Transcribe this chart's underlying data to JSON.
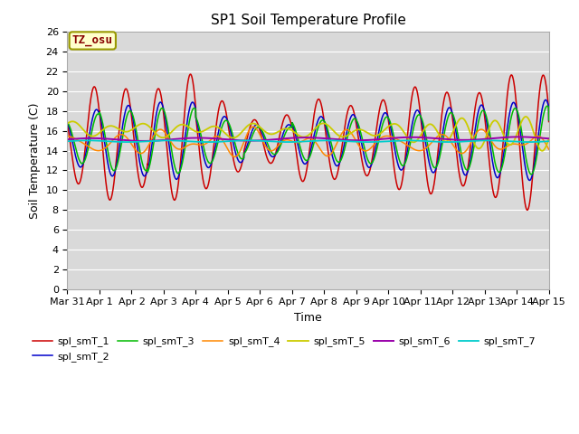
{
  "title": "SP1 Soil Temperature Profile",
  "xlabel": "Time",
  "ylabel": "Soil Temperature (C)",
  "ylim": [
    0,
    26
  ],
  "annotation": "TZ_osu",
  "legend": [
    "spl_smT_1",
    "spl_smT_2",
    "spl_smT_3",
    "spl_smT_4",
    "spl_smT_5",
    "spl_smT_6",
    "spl_smT_7"
  ],
  "colors": [
    "#cc0000",
    "#0000cc",
    "#00bb00",
    "#ff8800",
    "#cccc00",
    "#9900aa",
    "#00cccc"
  ],
  "background_color": "#d9d9d9",
  "figure_color": "#ffffff",
  "xtick_labels": [
    "Mar 31",
    "Apr 1",
    "Apr 2",
    "Apr 3",
    "Apr 4",
    "Apr 5",
    "Apr 6",
    "Apr 7",
    "Apr 8",
    "Apr 9",
    "Apr 10",
    "Apr 11",
    "Apr 12",
    "Apr 13",
    "Apr 14",
    "Apr 15"
  ],
  "xtick_positions": [
    0,
    1,
    2,
    3,
    4,
    5,
    6,
    7,
    8,
    9,
    10,
    11,
    12,
    13,
    14,
    15
  ],
  "ytick_positions": [
    0,
    2,
    4,
    6,
    8,
    10,
    12,
    14,
    16,
    18,
    20,
    22,
    24,
    26
  ]
}
